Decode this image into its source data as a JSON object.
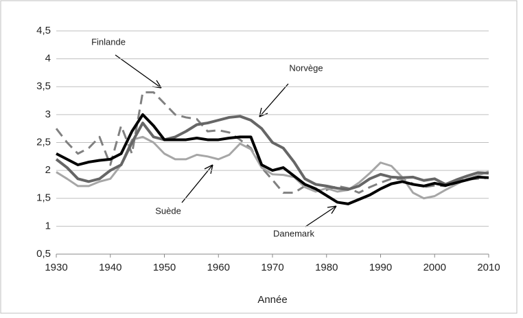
{
  "chart_data": {
    "type": "line",
    "x_label": "Année",
    "x": [
      1930,
      1932,
      1934,
      1936,
      1938,
      1940,
      1942,
      1944,
      1946,
      1948,
      1950,
      1952,
      1954,
      1956,
      1958,
      1960,
      1962,
      1964,
      1966,
      1968,
      1970,
      1972,
      1974,
      1976,
      1978,
      1980,
      1982,
      1984,
      1986,
      1988,
      1990,
      1992,
      1994,
      1996,
      1998,
      2000,
      2002,
      2004,
      2006,
      2008,
      2010
    ],
    "series": [
      {
        "name": "Finlande",
        "color": "#808080",
        "dashed": true,
        "values": [
          2.75,
          2.5,
          2.3,
          2.4,
          2.6,
          2.1,
          2.8,
          2.3,
          3.4,
          3.4,
          3.2,
          3.0,
          2.95,
          2.92,
          2.7,
          2.72,
          2.68,
          2.55,
          2.4,
          2.05,
          1.83,
          1.6,
          1.6,
          1.72,
          1.65,
          1.65,
          1.72,
          1.68,
          1.6,
          1.7,
          1.78,
          1.85,
          1.85,
          1.76,
          1.7,
          1.73,
          1.72,
          1.8,
          1.84,
          1.85,
          1.87
        ]
      },
      {
        "name": "Suède",
        "color": "#a6a6a6",
        "values": [
          1.97,
          1.85,
          1.72,
          1.72,
          1.8,
          1.85,
          2.1,
          2.55,
          2.6,
          2.5,
          2.3,
          2.2,
          2.2,
          2.28,
          2.25,
          2.2,
          2.28,
          2.48,
          2.38,
          2.05,
          1.93,
          1.92,
          1.88,
          1.7,
          1.62,
          1.68,
          1.62,
          1.65,
          1.78,
          1.95,
          2.14,
          2.08,
          1.88,
          1.6,
          1.5,
          1.54,
          1.65,
          1.75,
          1.85,
          1.91,
          1.98
        ]
      },
      {
        "name": "Norvège",
        "color": "#666666",
        "values": [
          2.2,
          2.05,
          1.85,
          1.8,
          1.85,
          2.0,
          2.1,
          2.5,
          2.85,
          2.6,
          2.55,
          2.6,
          2.7,
          2.82,
          2.85,
          2.9,
          2.95,
          2.97,
          2.9,
          2.75,
          2.5,
          2.4,
          2.15,
          1.85,
          1.75,
          1.72,
          1.68,
          1.66,
          1.72,
          1.85,
          1.93,
          1.88,
          1.87,
          1.88,
          1.82,
          1.85,
          1.75,
          1.83,
          1.9,
          1.96,
          1.95
        ]
      },
      {
        "name": "Danemark",
        "color": "#000000",
        "values": [
          2.3,
          2.2,
          2.1,
          2.15,
          2.18,
          2.2,
          2.3,
          2.7,
          3.0,
          2.8,
          2.55,
          2.55,
          2.55,
          2.58,
          2.55,
          2.55,
          2.58,
          2.6,
          2.6,
          2.1,
          2.0,
          2.05,
          1.9,
          1.75,
          1.67,
          1.55,
          1.43,
          1.4,
          1.48,
          1.56,
          1.67,
          1.76,
          1.8,
          1.75,
          1.72,
          1.77,
          1.73,
          1.78,
          1.83,
          1.88,
          1.87
        ]
      }
    ],
    "xlim": [
      1930,
      2010
    ],
    "xticks": [
      1930,
      1940,
      1950,
      1960,
      1970,
      1980,
      1990,
      2000,
      2010
    ],
    "ylim": [
      0.5,
      4.5
    ],
    "yticks": [
      {
        "value": 0.5,
        "label": "0,5"
      },
      {
        "value": 1,
        "label": "1"
      },
      {
        "value": 1.5,
        "label": "1,5"
      },
      {
        "value": 2,
        "label": "2"
      },
      {
        "value": 2.5,
        "label": "2,5"
      },
      {
        "value": 3,
        "label": "3"
      },
      {
        "value": 3.5,
        "label": "3,5"
      },
      {
        "value": 4,
        "label": "4"
      },
      {
        "value": 4.5,
        "label": "4,5"
      }
    ],
    "grid": true
  }
}
